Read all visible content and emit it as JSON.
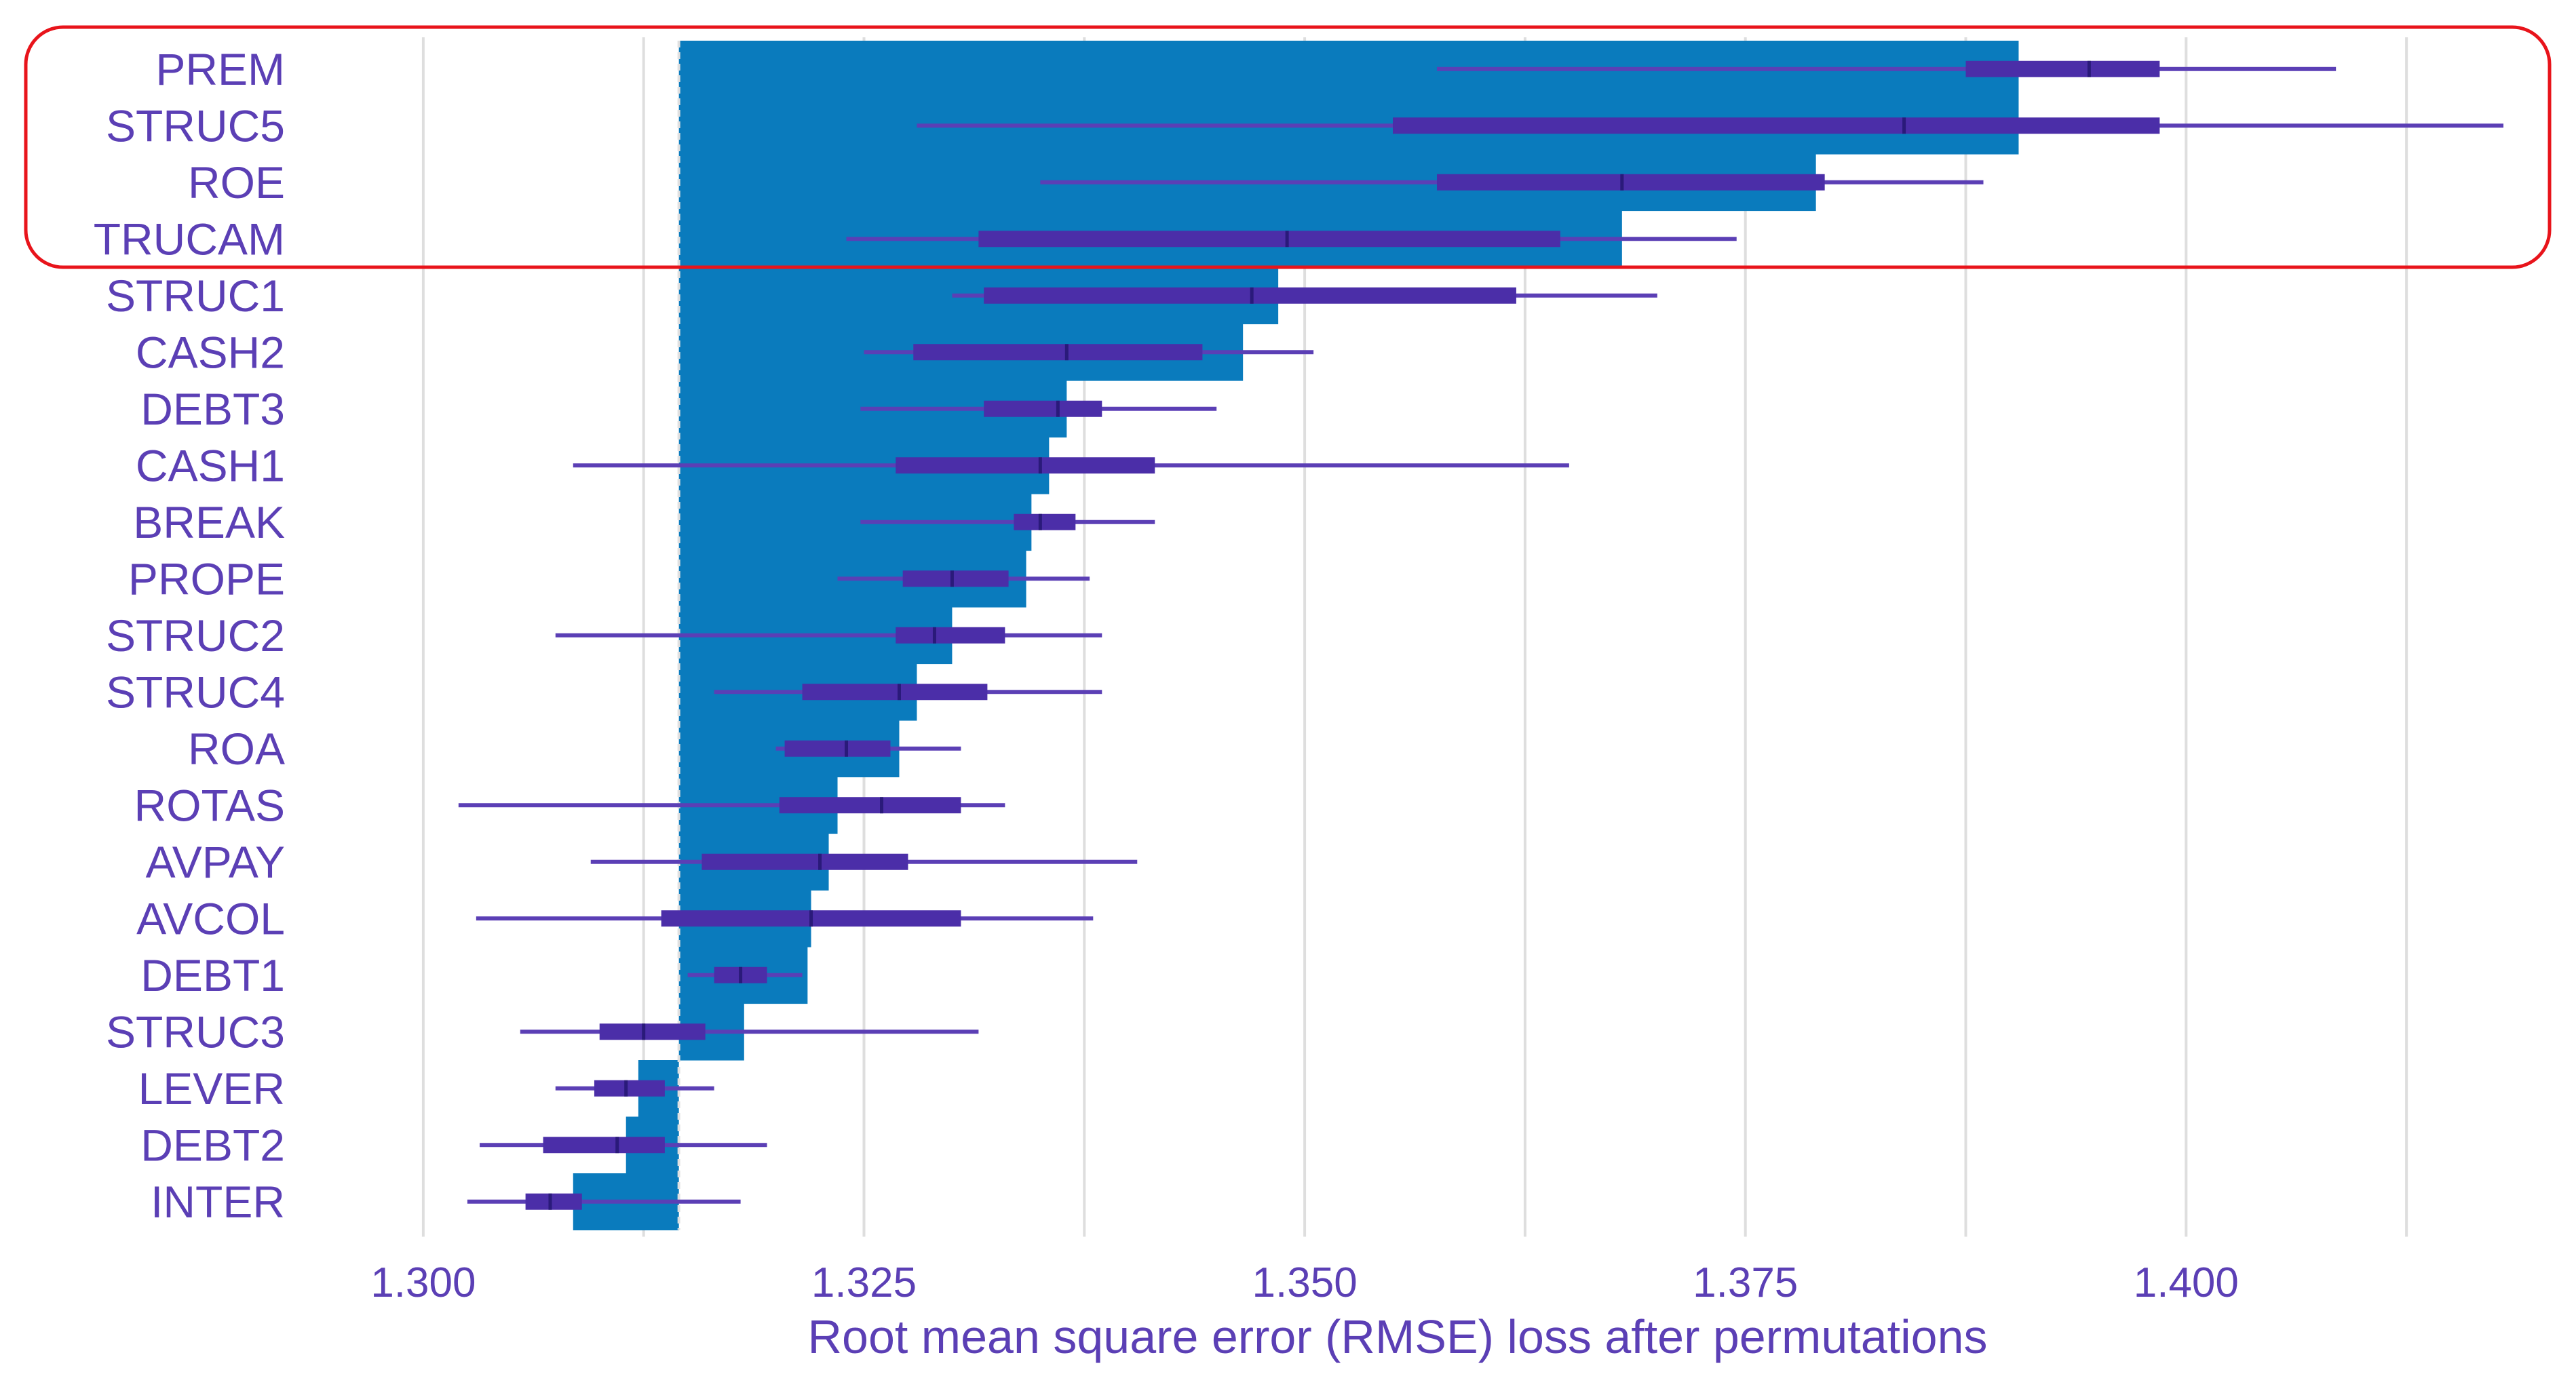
{
  "chart_data": {
    "type": "bar",
    "title": "",
    "xlabel": "Root mean square error (RMSE) loss after permutations",
    "ylabel": "",
    "xlim": [
      1.2935,
      1.4205
    ],
    "xticks": [
      1.3,
      1.325,
      1.35,
      1.375,
      1.4
    ],
    "xtick_labels": [
      "1.300",
      "1.325",
      "1.350",
      "1.375",
      "1.400"
    ],
    "baseline": 1.3145,
    "grid": true,
    "categories": [
      "PREM",
      "STRUC5",
      "ROE",
      "TRUCAM",
      "STRUC1",
      "CASH2",
      "DEBT3",
      "CASH1",
      "BREAK",
      "PROPE",
      "STRUC2",
      "STRUC4",
      "ROA",
      "ROTAS",
      "AVPAY",
      "AVCOL",
      "DEBT1",
      "STRUC3",
      "LEVER",
      "DEBT2",
      "INTER"
    ],
    "values": [
      1.3905,
      1.3905,
      1.379,
      1.368,
      1.3485,
      1.3465,
      1.3365,
      1.3355,
      1.3345,
      1.3342,
      1.33,
      1.328,
      1.327,
      1.3235,
      1.323,
      1.322,
      1.3218,
      1.3182,
      1.3122,
      1.3115,
      1.3085
    ],
    "whisker_low": [
      1.3575,
      1.328,
      1.335,
      1.324,
      1.33,
      1.325,
      1.3248,
      1.3085,
      1.3248,
      1.3235,
      1.3075,
      1.3165,
      1.32,
      1.302,
      1.3095,
      1.303,
      1.315,
      1.3055,
      1.3075,
      1.3032,
      1.3025
    ],
    "whisker_high": [
      1.4085,
      1.418,
      1.3885,
      1.3745,
      1.37,
      1.3505,
      1.345,
      1.365,
      1.3415,
      1.3378,
      1.3385,
      1.3385,
      1.3305,
      1.333,
      1.3405,
      1.338,
      1.3215,
      1.3315,
      1.3165,
      1.3195,
      1.318
    ],
    "box_low": [
      1.3875,
      1.355,
      1.3575,
      1.3315,
      1.3318,
      1.3278,
      1.3318,
      1.3268,
      1.3335,
      1.3272,
      1.3268,
      1.3215,
      1.3205,
      1.3202,
      1.3158,
      1.3135,
      1.3165,
      1.31,
      1.3097,
      1.3068,
      1.3058
    ],
    "box_high": [
      1.3985,
      1.3985,
      1.3795,
      1.3645,
      1.362,
      1.3442,
      1.3385,
      1.3415,
      1.337,
      1.3332,
      1.333,
      1.332,
      1.3265,
      1.3305,
      1.3275,
      1.3305,
      1.3195,
      1.316,
      1.3137,
      1.3137,
      1.309
    ],
    "medians": [
      1.3945,
      1.384,
      1.368,
      1.349,
      1.347,
      1.3365,
      1.336,
      1.335,
      1.335,
      1.33,
      1.329,
      1.327,
      1.324,
      1.326,
      1.3225,
      1.322,
      1.318,
      1.3125,
      1.3115,
      1.311,
      1.3072
    ],
    "highlight": {
      "categories": [
        "PREM",
        "STRUC5",
        "ROE",
        "TRUCAM"
      ],
      "color": "#e8141b"
    },
    "colors": {
      "bar": "#0a7bbd",
      "whisker": "#5b3fb5",
      "box": "#4b2ea8",
      "baseline": "#e0e0e0",
      "grid": "#dedede",
      "text": "#5b3fb5"
    }
  }
}
